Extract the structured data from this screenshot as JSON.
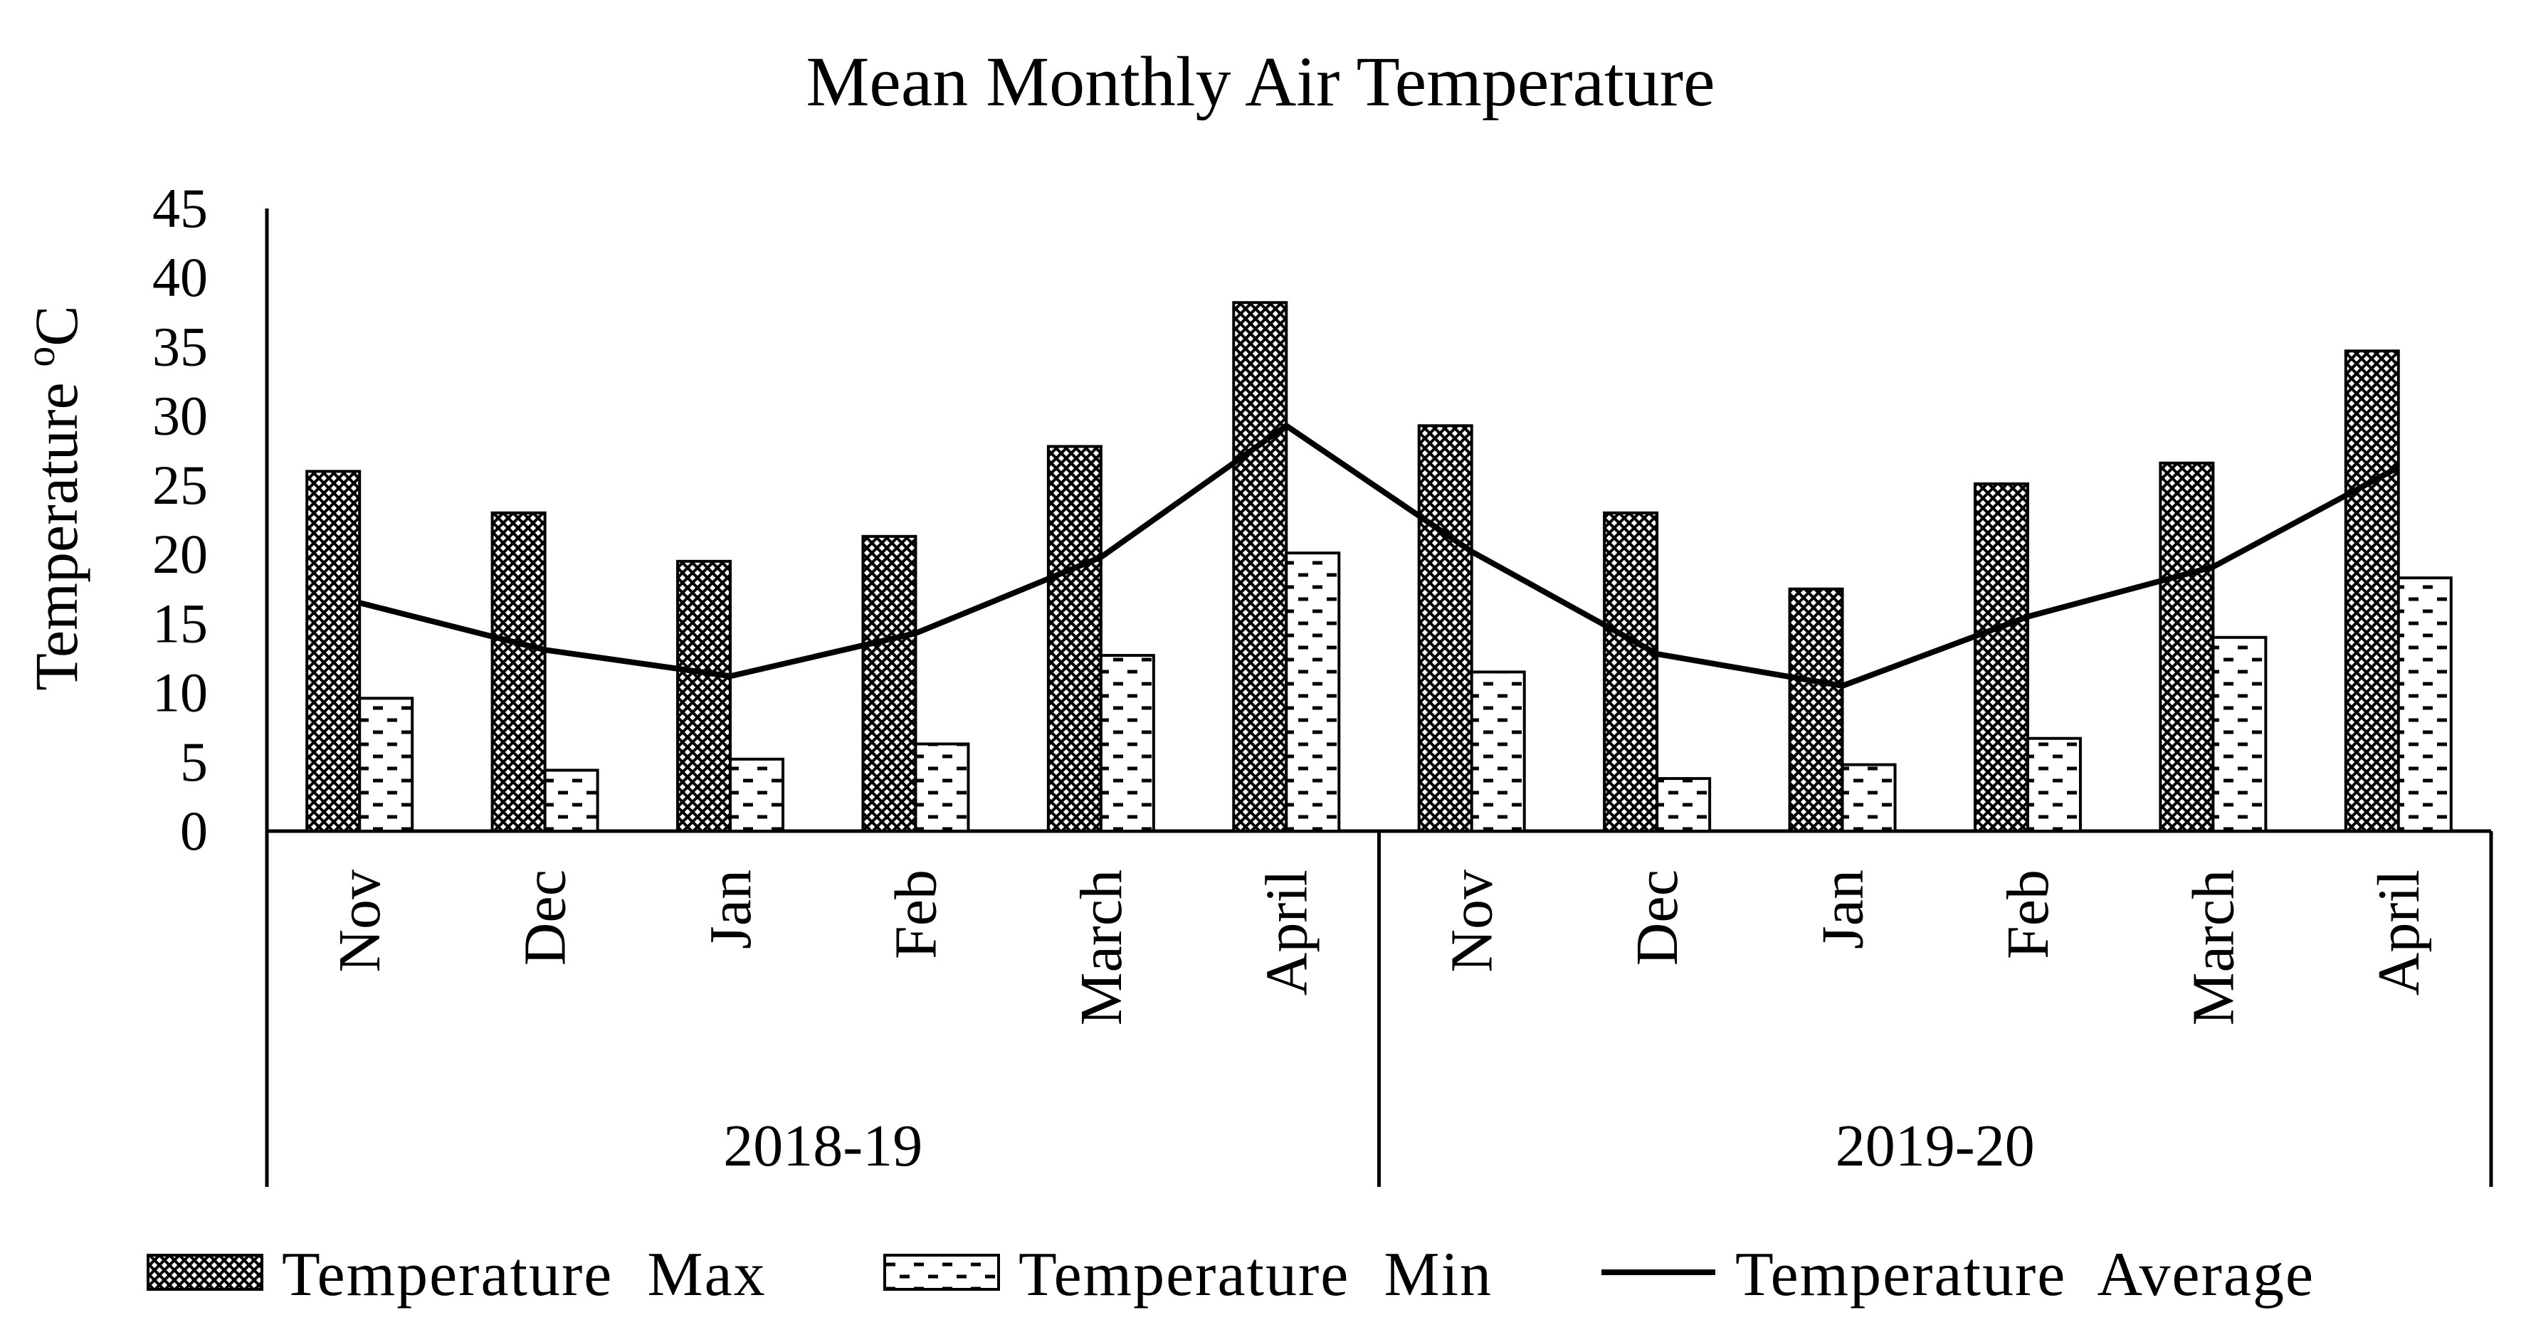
{
  "chart_data": {
    "type": "bar",
    "title": "Mean Monthly Air Temperature",
    "ylabel": "Temperature ",
    "ylabel_unit": "oC",
    "ylabel_sup": "o",
    "ylabel_unit_letter": "C",
    "xlabel": "",
    "ylim": [
      0,
      45
    ],
    "yticks": [
      0,
      5,
      10,
      15,
      20,
      25,
      30,
      35,
      40,
      45
    ],
    "grid": false,
    "legend_position": "bottom",
    "groups": [
      {
        "label": "2018-19",
        "categories": [
          "Nov",
          "Dec",
          "Jan",
          "Feb",
          "March",
          "April"
        ]
      },
      {
        "label": "2019-20",
        "categories": [
          "Nov",
          "Dec",
          "Jan",
          "Feb",
          "March",
          "April"
        ]
      }
    ],
    "categories": [
      "Nov",
      "Dec",
      "Jan",
      "Feb",
      "March",
      "April",
      "Nov",
      "Dec",
      "Jan",
      "Feb",
      "March",
      "April"
    ],
    "series": [
      {
        "name": "Temperature  Max",
        "type": "bar",
        "pattern": "crosshatch",
        "values": [
          26,
          23,
          19.5,
          21.3,
          27.8,
          38.2,
          29.3,
          23,
          17.5,
          25.1,
          26.6,
          34.7
        ]
      },
      {
        "name": "Temperature  Min",
        "type": "bar",
        "pattern": "dashes",
        "values": [
          9.6,
          4.4,
          5.2,
          6.3,
          12.7,
          20.1,
          11.5,
          3.8,
          4.8,
          6.7,
          14,
          18.3
        ]
      },
      {
        "name": "Temperature  Average",
        "type": "line",
        "values": [
          16.5,
          13.1,
          11.2,
          14.3,
          19.8,
          29.3,
          20.2,
          12.8,
          10.5,
          15.5,
          19.1,
          26.3
        ]
      }
    ]
  }
}
